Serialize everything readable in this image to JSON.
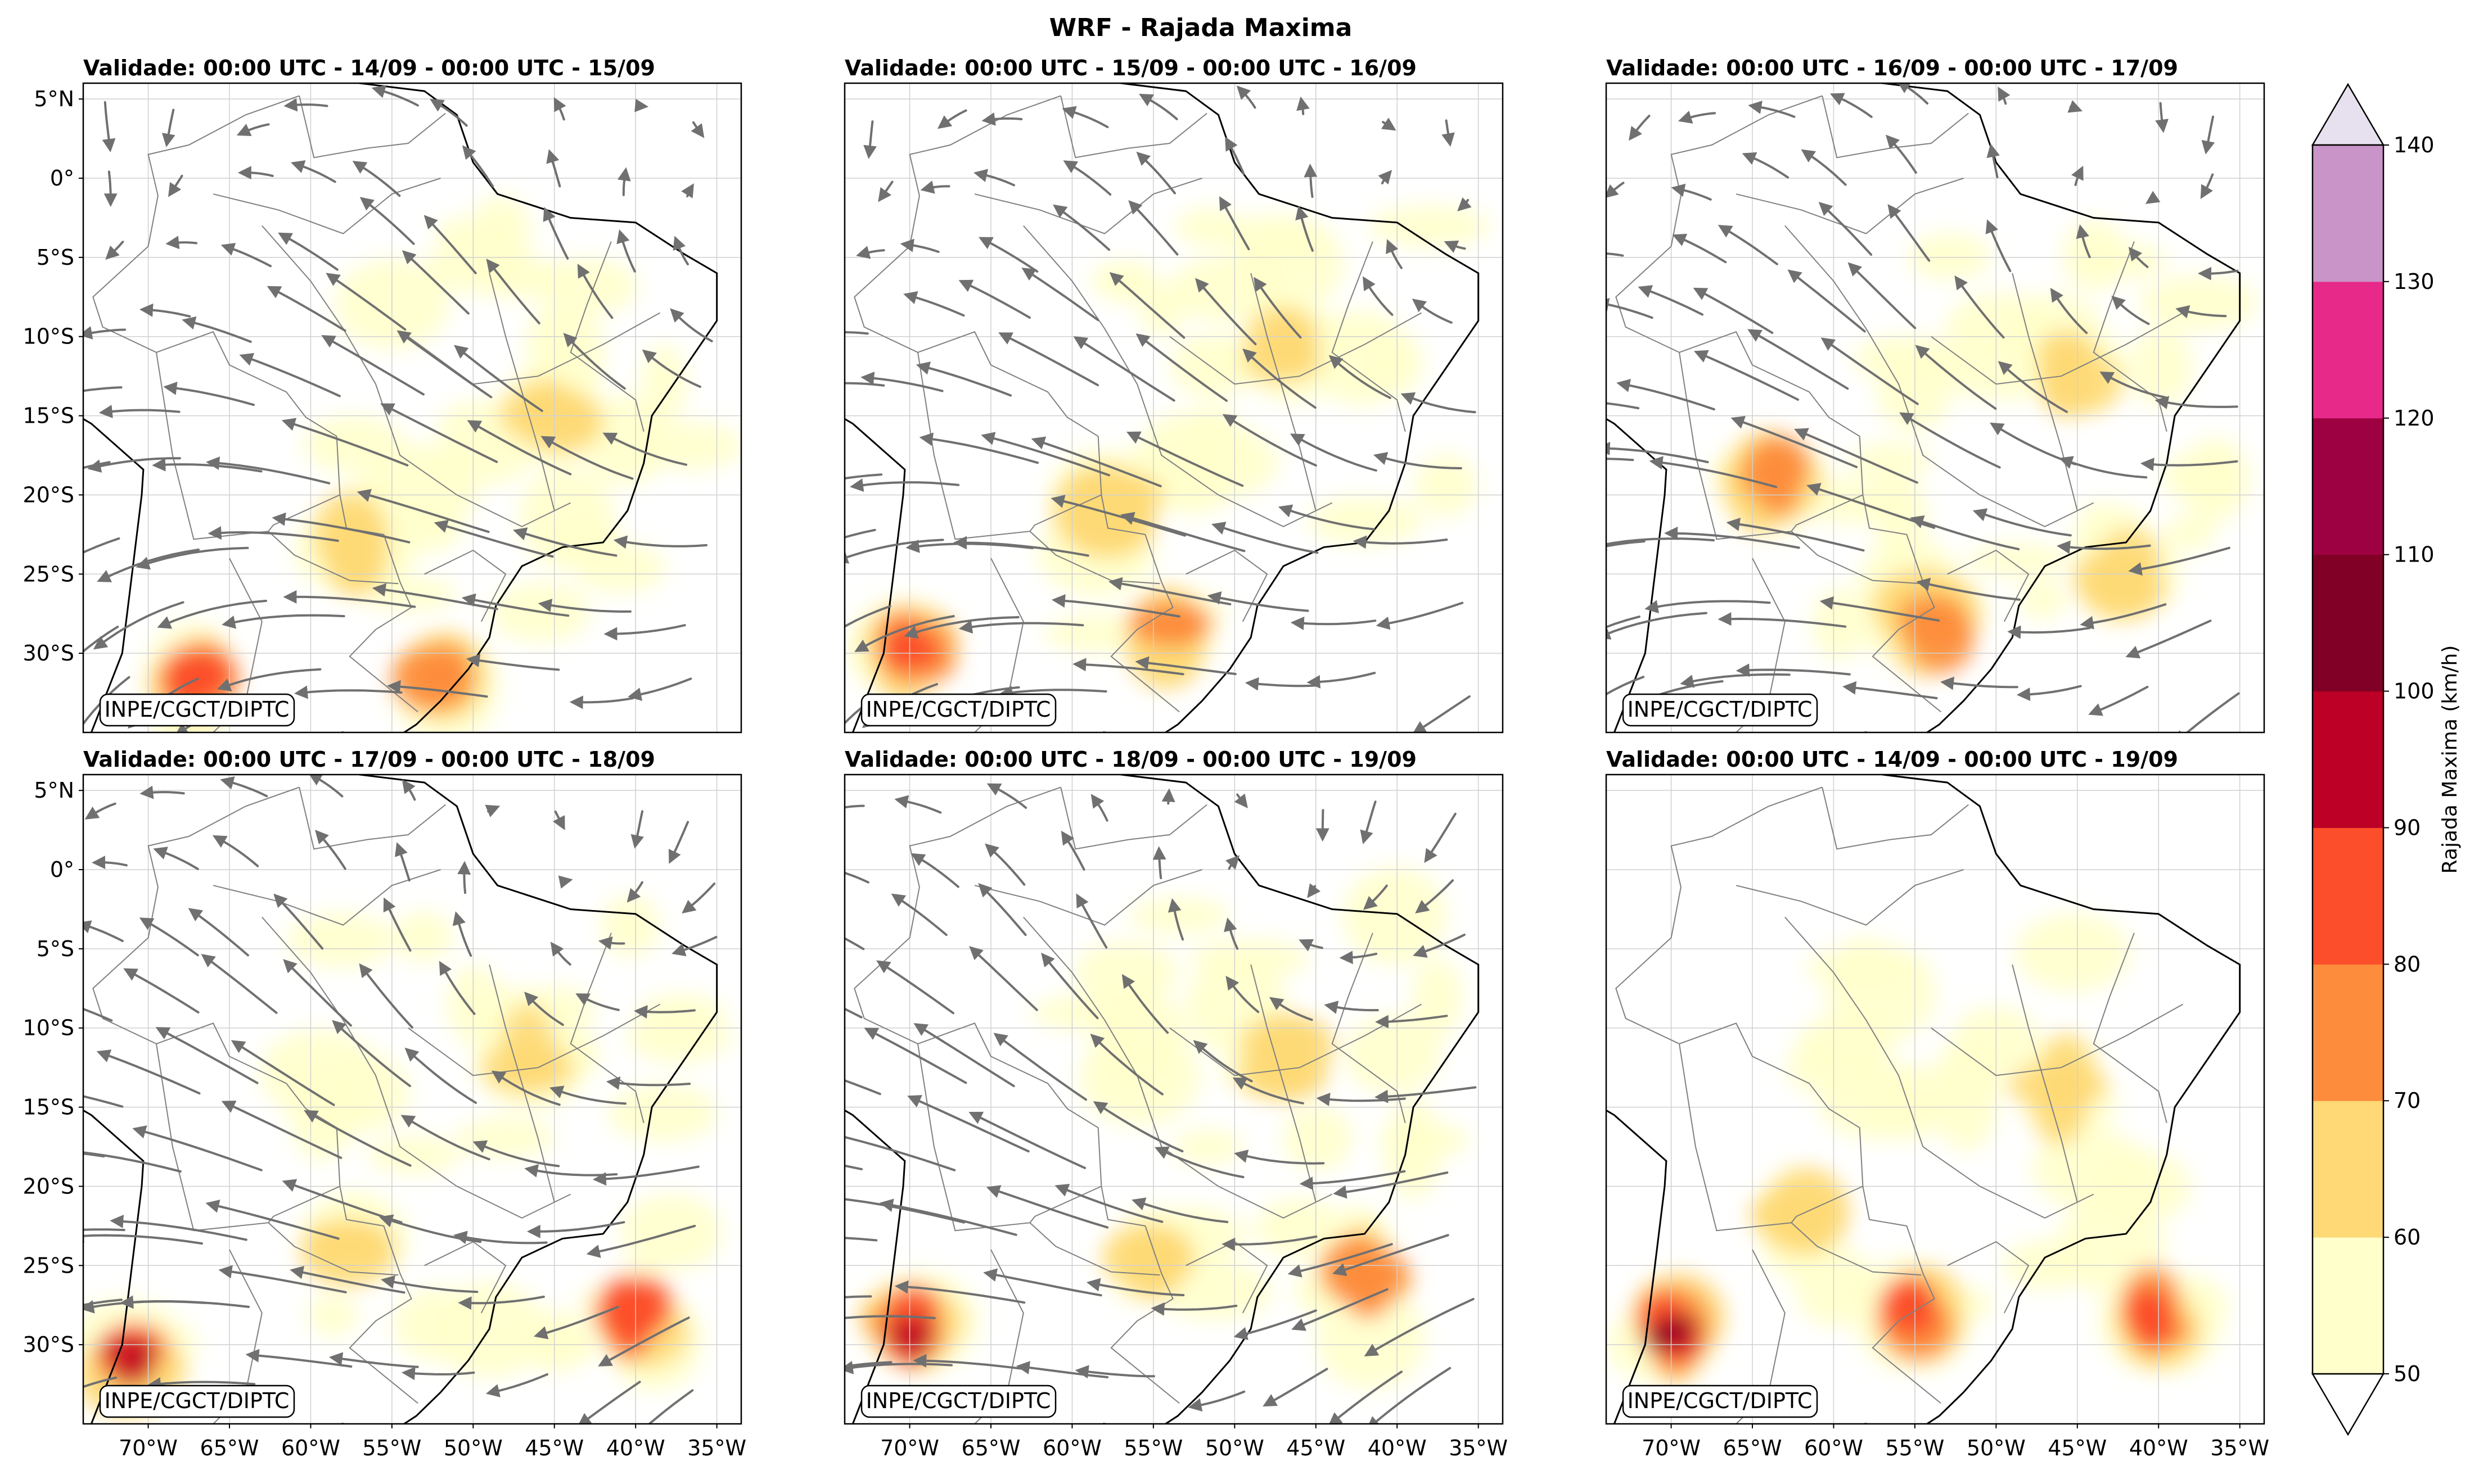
{
  "figure": {
    "title": "WRF - Rajada Maxima",
    "credit": "INPE/CGCT/DIPTC"
  },
  "chart_data": {
    "type": "heatmap",
    "variable": "Rajada Maxima",
    "panels": [
      {
        "title": "Validade: 00:00 UTC - 14/09 - 00:00 UTC - 15/09",
        "streamlines": true,
        "hotspots": [
          {
            "lon": -57,
            "lat": -23,
            "level": 1
          },
          {
            "lon": -52,
            "lat": -31.5,
            "level": 2
          },
          {
            "lon": -45,
            "lat": -15,
            "level": 1
          },
          {
            "lon": -67,
            "lat": -32,
            "level": 3
          }
        ]
      },
      {
        "title": "Validade: 00:00 UTC - 15/09 - 00:00 UTC - 16/09",
        "streamlines": true,
        "hotspots": [
          {
            "lon": -47,
            "lat": -11,
            "level": 1
          },
          {
            "lon": -54,
            "lat": -28.5,
            "level": 2
          },
          {
            "lon": -70,
            "lat": -29.5,
            "level": 3
          },
          {
            "lon": -58,
            "lat": -21,
            "level": 1
          }
        ]
      },
      {
        "title": "Validade: 00:00 UTC - 16/09 - 00:00 UTC - 17/09",
        "streamlines": true,
        "hotspots": [
          {
            "lon": -45,
            "lat": -12,
            "level": 1
          },
          {
            "lon": -54,
            "lat": -28,
            "level": 2
          },
          {
            "lon": -64,
            "lat": -19,
            "level": 2
          },
          {
            "lon": -42,
            "lat": -25,
            "level": 1
          }
        ]
      },
      {
        "title": "Validade: 00:00 UTC - 17/09 - 00:00 UTC - 18/09",
        "streamlines": true,
        "hotspots": [
          {
            "lon": -46,
            "lat": -12,
            "level": 1
          },
          {
            "lon": -40,
            "lat": -28.5,
            "level": 3
          },
          {
            "lon": -71,
            "lat": -31,
            "level": 4
          },
          {
            "lon": -58,
            "lat": -24,
            "level": 1
          }
        ]
      },
      {
        "title": "Validade: 00:00 UTC - 18/09 - 00:00 UTC - 19/09",
        "streamlines": true,
        "hotspots": [
          {
            "lon": -47,
            "lat": -12,
            "level": 1
          },
          {
            "lon": -42,
            "lat": -25.5,
            "level": 2
          },
          {
            "lon": -70,
            "lat": -29,
            "level": 4
          },
          {
            "lon": -55,
            "lat": -24,
            "level": 1
          }
        ]
      },
      {
        "title": "Validade: 00:00 UTC - 14/09 - 00:00 UTC - 19/09",
        "streamlines": false,
        "hotspots": [
          {
            "lon": -46,
            "lat": -14,
            "level": 1
          },
          {
            "lon": -40,
            "lat": -28,
            "level": 3
          },
          {
            "lon": -55,
            "lat": -28,
            "level": 3
          },
          {
            "lon": -70,
            "lat": -29,
            "level": 5
          },
          {
            "lon": -62,
            "lat": -22,
            "level": 1
          }
        ]
      }
    ],
    "x_axis": {
      "ticks": [
        -70,
        -65,
        -60,
        -55,
        -50,
        -45,
        -40,
        -35
      ],
      "tick_labels": [
        "70°W",
        "65°W",
        "60°W",
        "55°W",
        "50°W",
        "45°W",
        "40°W",
        "35°W"
      ],
      "range": [
        -74,
        -33.5
      ]
    },
    "y_axis": {
      "ticks": [
        5,
        0,
        -5,
        -10,
        -15,
        -20,
        -25,
        -30
      ],
      "tick_labels": [
        "5°N",
        "0°",
        "5°S",
        "10°S",
        "15°S",
        "20°S",
        "25°S",
        "30°S"
      ],
      "range": [
        -35,
        6
      ]
    },
    "colorbar": {
      "label": "Rajada Maxima (km/h)",
      "ticks": [
        "50",
        "60",
        "70",
        "80",
        "90",
        "100",
        "110",
        "120",
        "130",
        "140"
      ],
      "levels": [
        50,
        60,
        70,
        80,
        90,
        100,
        110,
        120,
        130,
        140
      ],
      "colors": [
        "#ffffcc",
        "#fed976",
        "#fd8d3c",
        "#fc4e2a",
        "#bd0026",
        "#800026",
        "#9e0142",
        "#e7298a",
        "#c994c7"
      ],
      "extend_low_color": "#ffffff",
      "extend_high_color": "#e7e1ef"
    },
    "colors": {
      "streamline": "#707070",
      "coast": "#000000",
      "border": "#808080",
      "grid": "#d0d0d0"
    }
  }
}
